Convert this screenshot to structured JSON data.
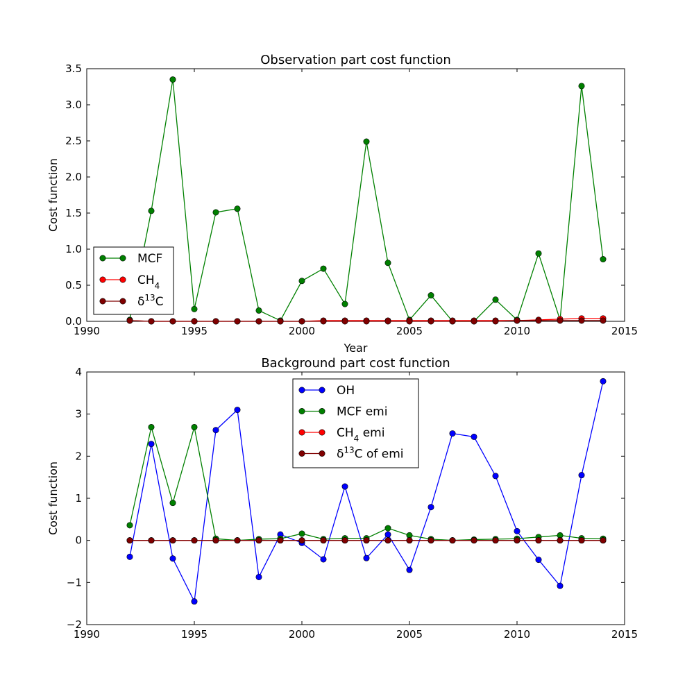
{
  "chart_data": [
    {
      "type": "line",
      "title": "Observation part cost function",
      "xlabel": "Year",
      "ylabel": "Cost function",
      "xlim": [
        1990,
        2015
      ],
      "ylim": [
        0,
        3.5
      ],
      "xticks": [
        "1990",
        "1995",
        "2000",
        "2005",
        "2010",
        "2015"
      ],
      "yticks": [
        "0.0",
        "0.5",
        "1.0",
        "1.5",
        "2.0",
        "2.5",
        "3.0",
        "3.5"
      ],
      "grid": false,
      "legend_position": "lower-left",
      "x": [
        1992,
        1993,
        1994,
        1995,
        1996,
        1997,
        1998,
        1999,
        2000,
        2001,
        2002,
        2003,
        2004,
        2005,
        2006,
        2007,
        2008,
        2009,
        2010,
        2011,
        2012,
        2013,
        2014
      ],
      "series": [
        {
          "name": "MCF",
          "sub": "",
          "sup": "",
          "prefix": "",
          "suffix": "",
          "color": "#008000",
          "values": [
            0.02,
            1.53,
            3.35,
            0.17,
            1.51,
            1.56,
            0.15,
            0.01,
            0.56,
            0.73,
            0.24,
            2.49,
            0.81,
            0.02,
            0.36,
            0.0,
            0.0,
            0.3,
            0.02,
            0.94,
            0.02,
            3.26,
            0.86
          ]
        },
        {
          "name": "CH",
          "sub": "4",
          "sup": "",
          "prefix": "",
          "suffix": "",
          "color": "#ff0000",
          "values": [
            0.01,
            0.0,
            0.0,
            0.0,
            0.0,
            0.0,
            0.0,
            0.0,
            0.0,
            0.01,
            0.01,
            0.01,
            0.01,
            0.01,
            0.01,
            0.01,
            0.01,
            0.01,
            0.01,
            0.02,
            0.03,
            0.04,
            0.04
          ]
        },
        {
          "name": "C",
          "sub": "",
          "sup": "13",
          "prefix": "δ",
          "suffix": "",
          "color": "#800000",
          "values": [
            0.01,
            0.0,
            0.0,
            0.0,
            0.0,
            0.0,
            0.0,
            0.0,
            0.0,
            0.0,
            0.0,
            0.0,
            0.0,
            0.0,
            0.0,
            0.0,
            0.0,
            0.0,
            0.01,
            0.01,
            0.01,
            0.01,
            0.01
          ]
        }
      ]
    },
    {
      "type": "line",
      "title": "Background part cost function",
      "xlabel": "",
      "ylabel": "Cost function",
      "xlim": [
        1990,
        2015
      ],
      "ylim": [
        -2,
        4
      ],
      "xticks": [
        "1990",
        "1995",
        "2000",
        "2005",
        "2010",
        "2015"
      ],
      "yticks": [
        "−2",
        "−1",
        "0",
        "1",
        "2",
        "3",
        "4"
      ],
      "grid": false,
      "legend_position": "top-center",
      "x": [
        1992,
        1993,
        1994,
        1995,
        1996,
        1997,
        1998,
        1999,
        2000,
        2001,
        2002,
        2003,
        2004,
        2005,
        2006,
        2007,
        2008,
        2009,
        2010,
        2011,
        2012,
        2013,
        2014
      ],
      "series": [
        {
          "name": "OH",
          "sub": "",
          "sup": "",
          "prefix": "",
          "suffix": "",
          "color": "#0000ff",
          "values": [
            -0.39,
            2.29,
            -0.43,
            -1.45,
            2.62,
            3.1,
            -0.87,
            0.14,
            -0.06,
            -0.45,
            1.28,
            -0.42,
            0.14,
            -0.7,
            0.79,
            2.54,
            2.46,
            1.53,
            0.22,
            -0.46,
            -1.08,
            1.55,
            3.78
          ]
        },
        {
          "name": "MCF emi",
          "sub": "",
          "sup": "",
          "prefix": "",
          "suffix": "",
          "color": "#008000",
          "values": [
            0.36,
            2.69,
            0.89,
            2.69,
            0.04,
            0.0,
            0.03,
            0.04,
            0.16,
            0.03,
            0.05,
            0.05,
            0.29,
            0.12,
            0.03,
            0.0,
            0.02,
            0.03,
            0.04,
            0.08,
            0.12,
            0.05,
            0.04
          ]
        },
        {
          "name": "CH",
          "sub": "4",
          "sup": "",
          "prefix": "",
          "suffix": " emi",
          "color": "#ff0000",
          "values": [
            0,
            0,
            0,
            0,
            0,
            0,
            0,
            0,
            0,
            0,
            0,
            0,
            0,
            0,
            0,
            0,
            0,
            0,
            0,
            0,
            0,
            0,
            0
          ]
        },
        {
          "name": "C of emi",
          "sub": "",
          "sup": "13",
          "prefix": "δ",
          "suffix": "",
          "color": "#800000",
          "values": [
            0,
            0,
            0,
            0,
            0,
            0,
            0,
            0,
            0,
            0,
            0,
            0,
            0,
            0,
            0,
            0,
            0,
            0,
            0,
            0,
            0,
            0,
            0
          ]
        }
      ]
    }
  ]
}
